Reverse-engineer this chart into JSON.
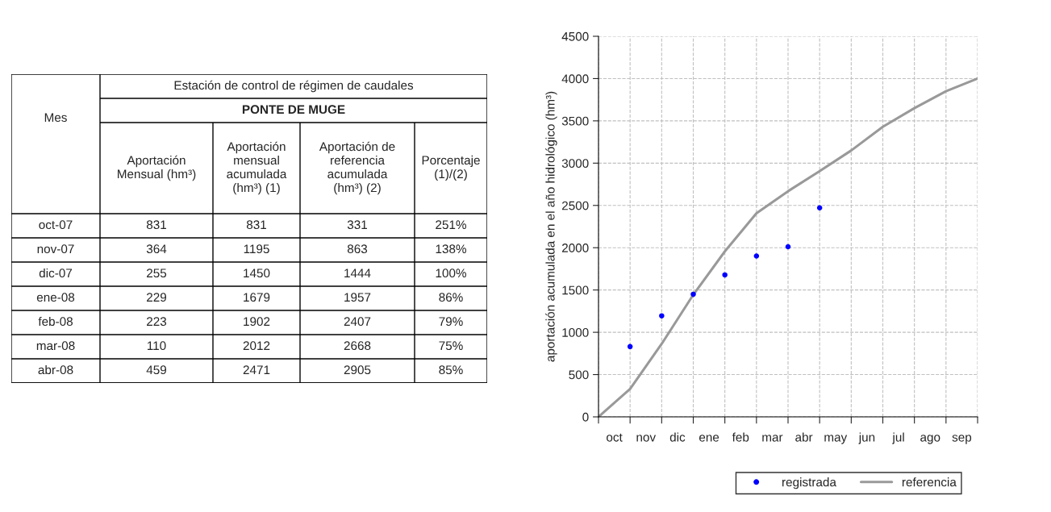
{
  "chart_data": [
    {
      "type": "other",
      "title": "Estación de control de régimen de caudales",
      "subtitle": "PONTE DE MUGE",
      "annotations": [
        "Mes",
        "Aportación\nMensual (hm³)",
        "Aportación\nmensual\nacumulada\n(hm³) (1)",
        "Aportación de\nreferencia\nacumulada\n(hm³) (2)",
        "Porcentaje\n(1)/(2)",
        "oct-07",
        "831",
        "831",
        "331",
        "251%",
        "nov-07",
        "364",
        "1195",
        "863",
        "138%",
        "dic-07",
        "255",
        "1450",
        "1444",
        "100%",
        "ene-08",
        "229",
        "1679",
        "1957",
        "86%",
        "feb-08",
        "223",
        "1902",
        "2407",
        "79%",
        "mar-08",
        "110",
        "2012",
        "2668",
        "75%",
        "abr-08",
        "459",
        "2471",
        "2905",
        "85%"
      ]
    },
    {
      "type": "line",
      "ylabel": "aportación acumulada en el año hidrológico (hm³)",
      "categories": [
        null,
        "oct",
        null,
        "nov",
        null,
        "dic",
        null,
        "ene",
        null,
        "feb",
        null,
        "mar",
        null,
        "abr",
        null,
        "may",
        null,
        "jun",
        null,
        "jul",
        null,
        "ago",
        null,
        "sep",
        null
      ],
      "ylim": [
        0,
        4500
      ],
      "yticks": [
        0,
        500,
        1000,
        1500,
        2000,
        2500,
        3000,
        3500,
        4000,
        4500
      ],
      "grid": true,
      "legend": "bottom",
      "series": [
        {
          "name": "registrada",
          "type": "scatter",
          "marker": "circle",
          "color": "#0000ff",
          "values": [
            null,
            null,
            831,
            null,
            1195,
            null,
            1450,
            null,
            1679,
            null,
            1902,
            null,
            2012,
            null,
            2471,
            null,
            null,
            null,
            null,
            null,
            null,
            null,
            null,
            null,
            null
          ]
        },
        {
          "name": "referencia",
          "type": "line",
          "marker": "none",
          "color": "#999999",
          "values": [
            0,
            null,
            331,
            null,
            863,
            null,
            1444,
            null,
            1957,
            null,
            2407,
            null,
            2668,
            null,
            2905,
            null,
            3150,
            null,
            3430,
            null,
            3650,
            null,
            3850,
            null,
            4000
          ]
        }
      ]
    }
  ]
}
